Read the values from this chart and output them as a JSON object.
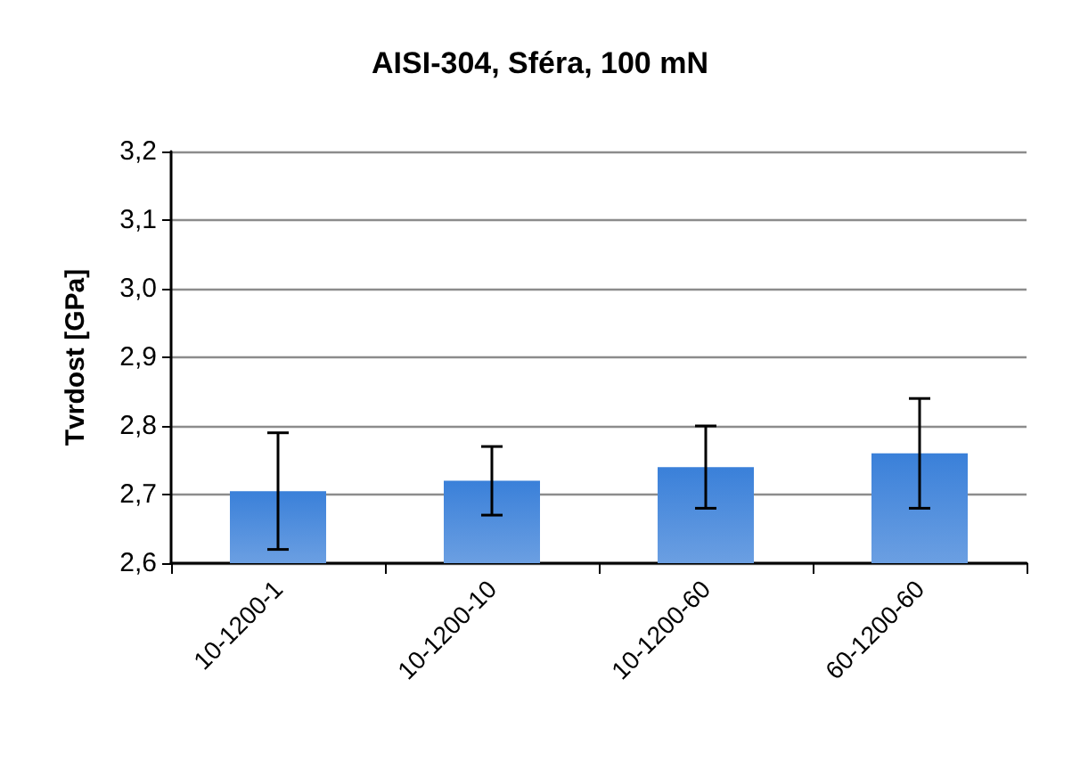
{
  "chart_data": {
    "type": "bar",
    "title": "AISI-304, Sféra, 100 mN",
    "ylabel": "Tvrdost [GPa]",
    "categories": [
      "10-1200-1",
      "10-1200-10",
      "10-1200-60",
      "60-1200-60"
    ],
    "values": [
      2.705,
      2.72,
      2.74,
      2.76
    ],
    "errors": [
      [
        2.62,
        2.79
      ],
      [
        2.67,
        2.77
      ],
      [
        2.68,
        2.8
      ],
      [
        2.68,
        2.84
      ]
    ],
    "color": "#3a80d9",
    "ylim": [
      2.6,
      3.2
    ],
    "yticks": [
      {
        "value": 2.6,
        "label": "2,6"
      },
      {
        "value": 2.7,
        "label": "2,7"
      },
      {
        "value": 2.8,
        "label": "2,8"
      },
      {
        "value": 2.9,
        "label": "2,9"
      },
      {
        "value": 3.0,
        "label": "3,0"
      },
      {
        "value": 3.1,
        "label": "3,1"
      },
      {
        "value": 3.2,
        "label": "3,2"
      }
    ],
    "grid": "y"
  }
}
